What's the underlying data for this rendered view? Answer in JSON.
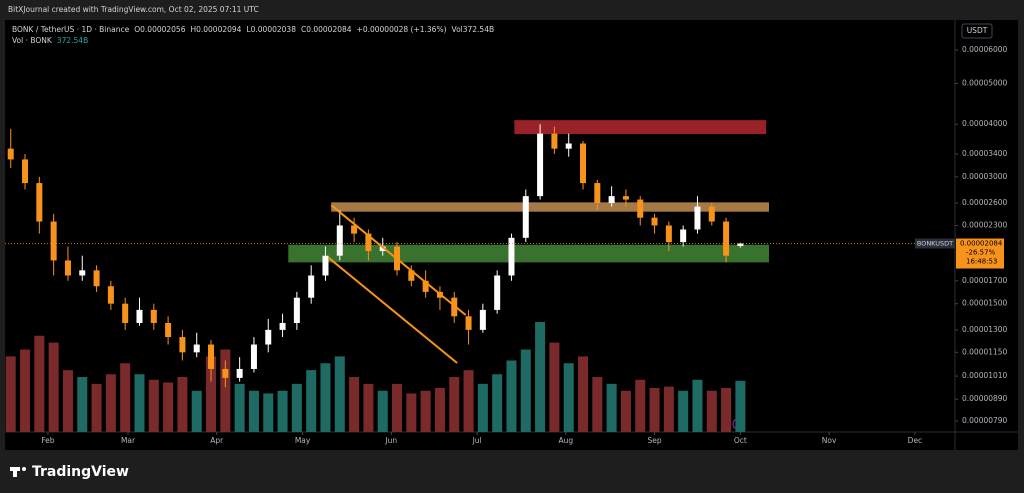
{
  "chart_data": {
    "type": "candlestick",
    "watermark": "BitXJournal created with TradingView.com, Oct 02, 2025 07:11 UTC",
    "legend_text": [
      "BONK / TetherUS · 1D · Binance",
      "O0.00002056",
      "H0.00002094",
      "L0.00002038",
      "C0.00002084",
      "+0.00000028 (+1.36%)",
      "Vol372.54B"
    ],
    "volume_legend": [
      "Vol · BONK",
      "372.54B"
    ],
    "y_axis_unit": "USDT",
    "log_scale": true,
    "x": [
      19,
      24,
      29,
      34,
      39,
      44,
      49,
      54,
      59,
      64,
      69,
      74,
      79,
      84,
      89,
      94,
      99,
      104,
      109,
      114,
      119,
      124,
      129,
      134,
      139,
      144,
      149,
      154,
      159,
      164,
      169,
      174,
      179,
      184,
      189,
      194,
      199,
      204,
      209,
      214,
      219,
      224,
      229,
      234,
      239,
      244,
      249,
      254,
      259,
      264,
      269,
      274
    ],
    "open": [
      3.5e-05,
      3.3e-05,
      2.9e-05,
      2.35e-05,
      1.9e-05,
      1.75e-05,
      1.8e-05,
      1.65e-05,
      1.5e-05,
      1.35e-05,
      1.45e-05,
      1.35e-05,
      1.25e-05,
      1.15e-05,
      1.2e-05,
      1.05e-05,
      1e-05,
      1.05e-05,
      1.2e-05,
      1.3e-05,
      1.35e-05,
      1.55e-05,
      1.75e-05,
      1.95e-05,
      2.3e-05,
      2.2e-05,
      2e-05,
      2.05e-05,
      1.8e-05,
      1.7e-05,
      1.6e-05,
      1.55e-05,
      1.4e-05,
      1.3e-05,
      1.45e-05,
      1.75e-05,
      2.15e-05,
      2.7e-05,
      3.8e-05,
      3.5e-05,
      3.6e-05,
      2.9e-05,
      2.6e-05,
      2.7e-05,
      2.65e-05,
      2.4e-05,
      2.3e-05,
      2.1e-05,
      2.25e-05,
      2.55e-05,
      2.35e-05,
      2.056e-05
    ],
    "high": [
      3.9e-05,
      3.4e-05,
      3e-05,
      2.45e-05,
      2.05e-05,
      1.95e-05,
      1.85e-05,
      1.7e-05,
      1.55e-05,
      1.55e-05,
      1.5e-05,
      1.4e-05,
      1.3e-05,
      1.28e-05,
      1.23e-05,
      1.1e-05,
      1.12e-05,
      1.25e-05,
      1.38e-05,
      1.42e-05,
      1.6e-05,
      1.85e-05,
      2.05e-05,
      2.5e-05,
      2.4e-05,
      2.25e-05,
      2.15e-05,
      2.1e-05,
      1.85e-05,
      1.8e-05,
      1.65e-05,
      1.6e-05,
      1.45e-05,
      1.5e-05,
      1.8e-05,
      2.2e-05,
      2.8e-05,
      4e-05,
      3.95e-05,
      3.8e-05,
      3.65e-05,
      2.95e-05,
      2.85e-05,
      2.8e-05,
      2.7e-05,
      2.45e-05,
      2.35e-05,
      2.3e-05,
      2.7e-05,
      2.6e-05,
      2.4e-05,
      2.094e-05
    ],
    "low": [
      3.15e-05,
      2.8e-05,
      2.2e-05,
      1.75e-05,
      1.7e-05,
      1.7e-05,
      1.6e-05,
      1.45e-05,
      1.3e-05,
      1.33e-05,
      1.3e-05,
      1.2e-05,
      1.1e-05,
      1.12e-05,
      9.8e-06,
      9.5e-06,
      9.8e-06,
      1.03e-05,
      1.15e-05,
      1.25e-05,
      1.3e-05,
      1.5e-05,
      1.7e-05,
      1.9e-05,
      2.1e-05,
      1.9e-05,
      1.95e-05,
      1.75e-05,
      1.65e-05,
      1.55e-05,
      1.45e-05,
      1.35e-05,
      1.2e-05,
      1.28e-05,
      1.42e-05,
      1.7e-05,
      2.1e-05,
      2.65e-05,
      3.4e-05,
      3.35e-05,
      2.8e-05,
      2.5e-05,
      2.55e-05,
      2.55e-05,
      2.3e-05,
      2.2e-05,
      2e-05,
      2.05e-05,
      2.2e-05,
      2.3e-05,
      1.88e-05,
      2.038e-05
    ],
    "close": [
      3.3e-05,
      2.9e-05,
      2.35e-05,
      1.9e-05,
      1.75e-05,
      1.8e-05,
      1.65e-05,
      1.5e-05,
      1.35e-05,
      1.45e-05,
      1.35e-05,
      1.25e-05,
      1.15e-05,
      1.2e-05,
      1.05e-05,
      1e-05,
      1.05e-05,
      1.2e-05,
      1.3e-05,
      1.35e-05,
      1.55e-05,
      1.75e-05,
      1.95e-05,
      2.3e-05,
      2.2e-05,
      2e-05,
      2.05e-05,
      1.8e-05,
      1.7e-05,
      1.6e-05,
      1.55e-05,
      1.4e-05,
      1.3e-05,
      1.45e-05,
      1.75e-05,
      2.15e-05,
      2.7e-05,
      3.8e-05,
      3.5e-05,
      3.6e-05,
      2.9e-05,
      2.6e-05,
      2.7e-05,
      2.65e-05,
      2.4e-05,
      2.3e-05,
      2.1e-05,
      2.25e-05,
      2.55e-05,
      2.35e-05,
      1.95e-05,
      2.084e-05
    ],
    "volume": [
      550,
      600,
      700,
      650,
      450,
      400,
      350,
      420,
      500,
      420,
      380,
      360,
      400,
      300,
      550,
      600,
      350,
      300,
      280,
      300,
      350,
      450,
      500,
      550,
      400,
      350,
      300,
      350,
      280,
      300,
      320,
      400,
      450,
      350,
      420,
      520,
      600,
      800,
      650,
      500,
      550,
      400,
      350,
      300,
      380,
      320,
      330,
      300,
      380,
      300,
      320,
      372.54
    ],
    "up_color": "#ffffff",
    "down_color": "#f7931a",
    "volume_up_color": "#1e6b64",
    "volume_down_color": "#7a2a2a",
    "xlim": [
      17,
      349
    ],
    "xticks": [
      {
        "value": 32,
        "label": "Feb"
      },
      {
        "value": 60,
        "label": "Mar"
      },
      {
        "value": 91,
        "label": "Apr"
      },
      {
        "value": 121,
        "label": "May"
      },
      {
        "value": 152,
        "label": "Jun"
      },
      {
        "value": 182,
        "label": "Jul"
      },
      {
        "value": 213,
        "label": "Aug"
      },
      {
        "value": 244,
        "label": "Sep"
      },
      {
        "value": 274,
        "label": "Oct"
      },
      {
        "value": 305,
        "label": "Nov"
      },
      {
        "value": 335,
        "label": "Dec"
      }
    ],
    "ylim": [
      7.44e-06,
      7.07e-05
    ],
    "yticks": [
      {
        "value": 6e-05,
        "label": "0.00006000"
      },
      {
        "value": 5e-05,
        "label": "0.00005000"
      },
      {
        "value": 4e-05,
        "label": "0.00004000"
      },
      {
        "value": 3.4e-05,
        "label": "0.00003400"
      },
      {
        "value": 3e-05,
        "label": "0.00003000"
      },
      {
        "value": 2.6e-05,
        "label": "0.00002600"
      },
      {
        "value": 2.3e-05,
        "label": "0.00002300"
      },
      {
        "value": 1.7e-05,
        "label": "0.00001700"
      },
      {
        "value": 1.5e-05,
        "label": "0.00001500"
      },
      {
        "value": 1.3e-05,
        "label": "0.00001300"
      },
      {
        "value": 1.15e-05,
        "label": "0.00001150"
      },
      {
        "value": 1.01e-05,
        "label": "0.00001010"
      },
      {
        "value": 8.9e-06,
        "label": "0.00000890"
      },
      {
        "value": 7.9e-06,
        "label": "0.00000790"
      }
    ],
    "zones": [
      {
        "color": "#a8262c",
        "ylim": [
          3.79e-05,
          4.09e-05
        ],
        "xlim": [
          195,
          283
        ]
      },
      {
        "color": "#b8874f",
        "ylim": [
          2.48e-05,
          2.61e-05
        ],
        "xlim": [
          131,
          284
        ]
      },
      {
        "color": "#3f7d33",
        "ylim": [
          1.88e-05,
          2.07e-05
        ],
        "xlim": [
          116,
          284
        ]
      }
    ],
    "trendline_color": "#f7931a",
    "trendlines": [
      {
        "x": [
          131,
          178
        ],
        "y": [
          2.57e-05,
          1.41e-05
        ]
      },
      {
        "x": [
          130,
          175
        ],
        "y": [
          1.93e-05,
          1.085e-05
        ]
      }
    ],
    "last_price": {
      "value": 2.084e-05,
      "label": "0.00002084"
    },
    "symbol_label": "BONKUSDT",
    "change_label": "-26.57%",
    "countdown": "16:48:53",
    "brand": "TradingView"
  }
}
